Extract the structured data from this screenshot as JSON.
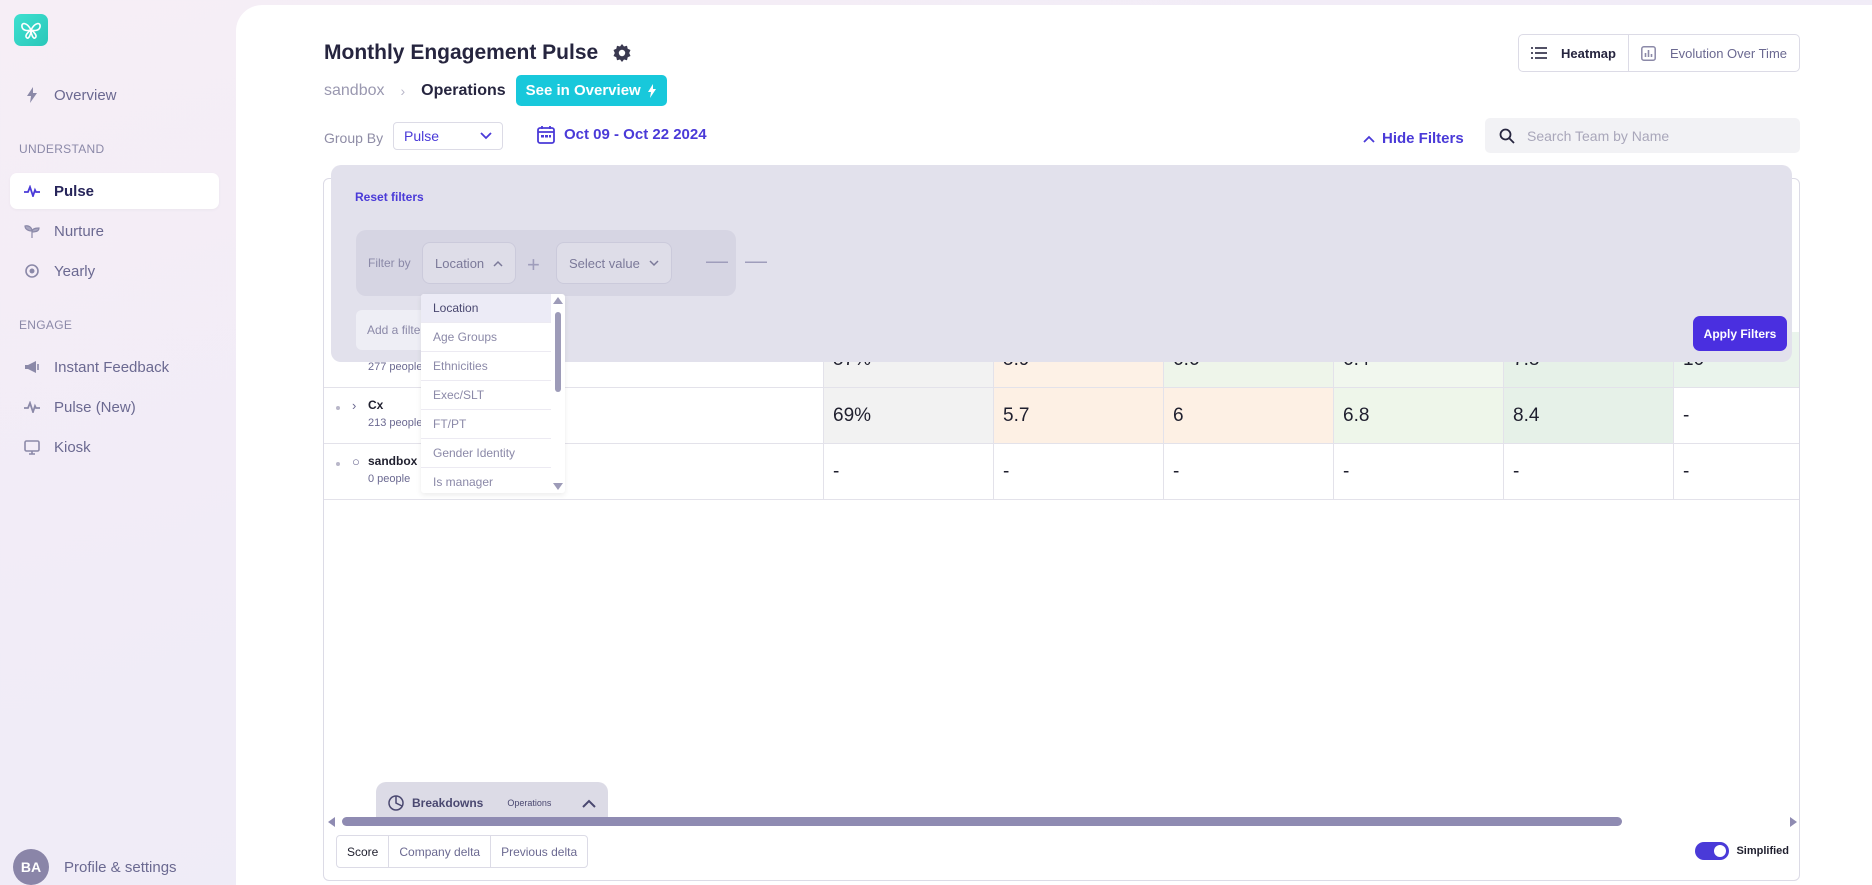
{
  "sidebar": {
    "items_top": [
      {
        "label": "Overview"
      }
    ],
    "section_understand": "UNDERSTAND",
    "understand_items": [
      {
        "label": "Pulse",
        "active": true
      },
      {
        "label": "Nurture"
      },
      {
        "label": "Yearly"
      }
    ],
    "section_engage": "ENGAGE",
    "engage_items": [
      {
        "label": "Instant Feedback"
      },
      {
        "label": "Pulse (New)"
      },
      {
        "label": "Kiosk"
      }
    ],
    "profile": {
      "initials": "BA",
      "label": "Profile & settings"
    }
  },
  "header": {
    "title": "Monthly Engagement Pulse",
    "breadcrumb_root": "sandbox",
    "breadcrumb_current": "Operations",
    "see_overview_label": "See in Overview",
    "views": [
      "Heatmap",
      "Evolution Over Time"
    ]
  },
  "toolbar": {
    "group_by_label": "Group By",
    "group_by_value": "Pulse",
    "date_range": "Oct 09 - Oct 22 2024",
    "hide_filters_label": "Hide Filters",
    "search_placeholder": "Search Team by Name"
  },
  "filters": {
    "reset_label": "Reset filters",
    "filter_by_label": "Filter by",
    "field_value": "Location",
    "value_placeholder": "Select value",
    "add_filter_label": "Add a filter",
    "apply_label": "Apply Filters",
    "dropdown_options": [
      "Location",
      "Age Groups",
      "Ethnicities",
      "Exec/SLT",
      "FT/PT",
      "Gender Identity",
      "Is manager"
    ]
  },
  "table": {
    "rows": [
      {
        "name": "",
        "people": "277 people",
        "cells": [
          "57%",
          "5.9",
          "6.6",
          "6.4",
          "7.8",
          "10"
        ]
      },
      {
        "name": "Cx",
        "people": "213 people",
        "cells": [
          "69%",
          "5.7",
          "6",
          "6.8",
          "8.4",
          "-"
        ]
      },
      {
        "name": "sandbox - ",
        "people": "0 people",
        "cells": [
          "-",
          "-",
          "-",
          "-",
          "-",
          "-"
        ]
      }
    ],
    "cell_colors": [
      [
        "#f2f2f2",
        "#fdf1e6",
        "#eef5ea",
        "#f1f7ee",
        "#e6f1e8",
        "#eaf4ec"
      ],
      [
        "#f2f2f2",
        "#fdf0e4",
        "#fdf0e4",
        "#eef6ea",
        "#e6f1e8",
        "#ffffff"
      ],
      [
        "#ffffff",
        "#ffffff",
        "#ffffff",
        "#ffffff",
        "#ffffff",
        "#ffffff"
      ]
    ]
  },
  "footer": {
    "breakdowns_label": "Breakdowns",
    "breakdowns_sub": "Operations",
    "metric_tabs": [
      "Score",
      "Company delta",
      "Previous delta"
    ],
    "simplified_label": "Simplified"
  },
  "colors": {
    "accent": "#4a3ad8",
    "teal": "#18c8db"
  }
}
